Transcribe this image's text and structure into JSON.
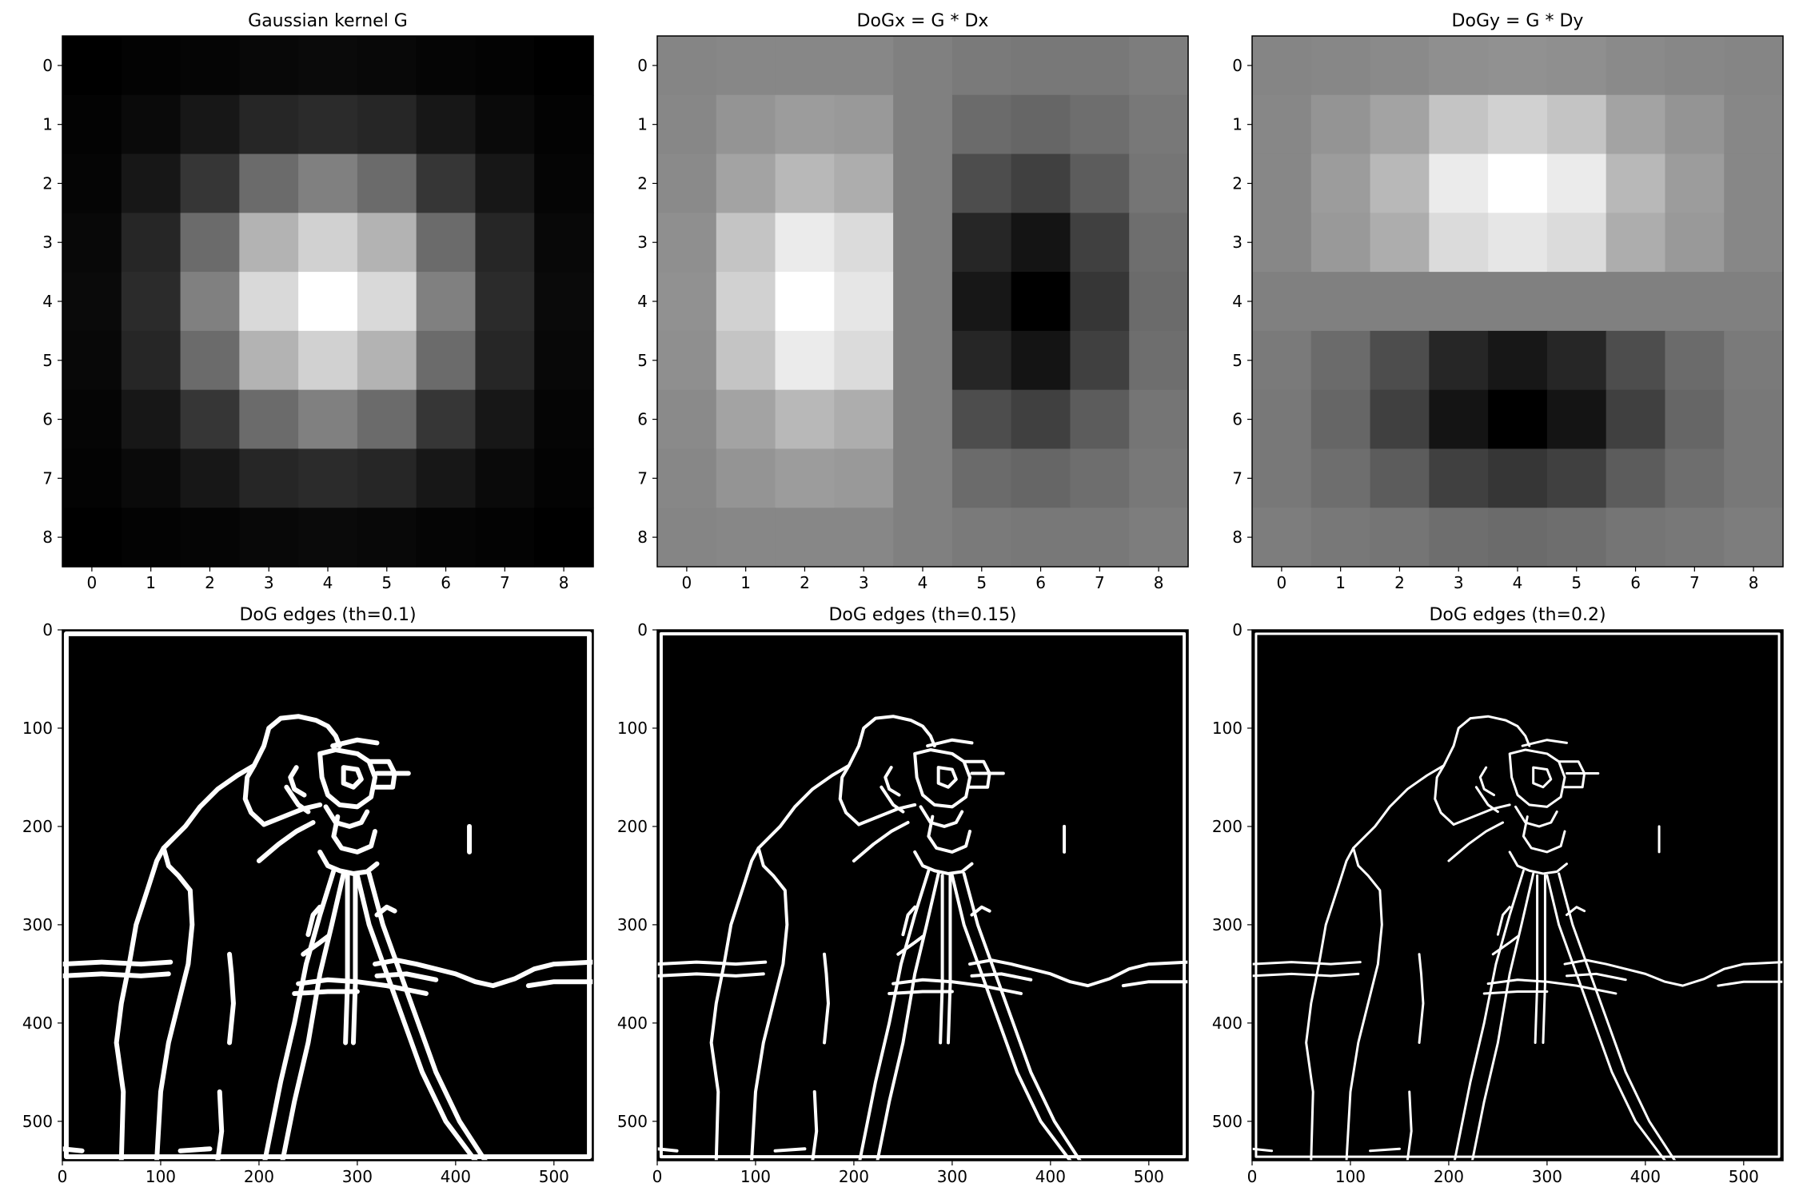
{
  "chart_data": [
    {
      "type": "heatmap",
      "title": "Gaussian kernel G",
      "x_ticks": [
        "0",
        "1",
        "2",
        "3",
        "4",
        "5",
        "6",
        "7",
        "8"
      ],
      "y_ticks": [
        "0",
        "1",
        "2",
        "3",
        "4",
        "5",
        "6",
        "7",
        "8"
      ],
      "colormap": "gray",
      "values": [
        [
          0.0,
          0.01,
          0.02,
          0.03,
          0.04,
          0.03,
          0.02,
          0.01,
          0.0
        ],
        [
          0.01,
          0.04,
          0.09,
          0.15,
          0.17,
          0.15,
          0.09,
          0.04,
          0.01
        ],
        [
          0.02,
          0.09,
          0.21,
          0.42,
          0.5,
          0.42,
          0.21,
          0.09,
          0.02
        ],
        [
          0.03,
          0.15,
          0.42,
          0.7,
          0.82,
          0.7,
          0.42,
          0.15,
          0.03
        ],
        [
          0.04,
          0.17,
          0.5,
          0.85,
          1.0,
          0.85,
          0.5,
          0.17,
          0.04
        ],
        [
          0.03,
          0.15,
          0.42,
          0.7,
          0.82,
          0.7,
          0.42,
          0.15,
          0.03
        ],
        [
          0.02,
          0.09,
          0.21,
          0.42,
          0.5,
          0.42,
          0.21,
          0.09,
          0.02
        ],
        [
          0.01,
          0.04,
          0.09,
          0.15,
          0.17,
          0.15,
          0.09,
          0.04,
          0.01
        ],
        [
          0.0,
          0.01,
          0.02,
          0.03,
          0.04,
          0.03,
          0.02,
          0.01,
          0.0
        ]
      ]
    },
    {
      "type": "heatmap",
      "title": "DoGx = G * Dx",
      "x_ticks": [
        "0",
        "1",
        "2",
        "3",
        "4",
        "5",
        "6",
        "7",
        "8"
      ],
      "y_ticks": [
        "0",
        "1",
        "2",
        "3",
        "4",
        "5",
        "6",
        "7",
        "8"
      ],
      "colormap": "gray",
      "values": [
        [
          0.52,
          0.53,
          0.53,
          0.53,
          0.5,
          0.48,
          0.47,
          0.47,
          0.49
        ],
        [
          0.53,
          0.58,
          0.61,
          0.6,
          0.5,
          0.42,
          0.4,
          0.43,
          0.47
        ],
        [
          0.54,
          0.64,
          0.72,
          0.68,
          0.5,
          0.3,
          0.25,
          0.36,
          0.46
        ],
        [
          0.56,
          0.77,
          0.92,
          0.86,
          0.5,
          0.15,
          0.08,
          0.25,
          0.43
        ],
        [
          0.57,
          0.82,
          1.0,
          0.9,
          0.5,
          0.09,
          0.0,
          0.21,
          0.42
        ],
        [
          0.56,
          0.77,
          0.92,
          0.86,
          0.5,
          0.15,
          0.08,
          0.25,
          0.43
        ],
        [
          0.54,
          0.64,
          0.72,
          0.68,
          0.5,
          0.3,
          0.25,
          0.36,
          0.46
        ],
        [
          0.53,
          0.58,
          0.61,
          0.6,
          0.5,
          0.42,
          0.4,
          0.43,
          0.47
        ],
        [
          0.52,
          0.53,
          0.53,
          0.53,
          0.5,
          0.48,
          0.47,
          0.47,
          0.49
        ]
      ]
    },
    {
      "type": "heatmap",
      "title": "DoGy = G * Dy",
      "x_ticks": [
        "0",
        "1",
        "2",
        "3",
        "4",
        "5",
        "6",
        "7",
        "8"
      ],
      "y_ticks": [
        "0",
        "1",
        "2",
        "3",
        "4",
        "5",
        "6",
        "7",
        "8"
      ],
      "colormap": "gray",
      "values": [
        [
          0.52,
          0.53,
          0.54,
          0.56,
          0.57,
          0.56,
          0.54,
          0.53,
          0.52
        ],
        [
          0.53,
          0.58,
          0.64,
          0.77,
          0.82,
          0.77,
          0.64,
          0.58,
          0.53
        ],
        [
          0.53,
          0.61,
          0.72,
          0.92,
          1.0,
          0.92,
          0.72,
          0.61,
          0.53
        ],
        [
          0.53,
          0.6,
          0.68,
          0.86,
          0.9,
          0.86,
          0.68,
          0.6,
          0.53
        ],
        [
          0.5,
          0.5,
          0.5,
          0.5,
          0.5,
          0.5,
          0.5,
          0.5,
          0.5
        ],
        [
          0.48,
          0.42,
          0.3,
          0.15,
          0.09,
          0.15,
          0.3,
          0.42,
          0.48
        ],
        [
          0.47,
          0.4,
          0.25,
          0.08,
          0.0,
          0.08,
          0.25,
          0.4,
          0.47
        ],
        [
          0.47,
          0.43,
          0.36,
          0.25,
          0.21,
          0.25,
          0.36,
          0.43,
          0.47
        ],
        [
          0.49,
          0.47,
          0.46,
          0.43,
          0.42,
          0.43,
          0.46,
          0.47,
          0.49
        ]
      ]
    },
    {
      "type": "heatmap",
      "title": "DoG edges (th=0.1)",
      "x_ticks": [
        "0",
        "100",
        "200",
        "300",
        "400",
        "500"
      ],
      "y_ticks": [
        "0",
        "100",
        "200",
        "300",
        "400",
        "500"
      ],
      "colormap": "binary edges on black",
      "stroke": 6
    },
    {
      "type": "heatmap",
      "title": "DoG edges (th=0.15)",
      "x_ticks": [
        "0",
        "100",
        "200",
        "300",
        "400",
        "500"
      ],
      "y_ticks": [
        "0",
        "100",
        "200",
        "300",
        "400",
        "500"
      ],
      "colormap": "binary edges on black",
      "stroke": 4
    },
    {
      "type": "heatmap",
      "title": "DoG edges (th=0.2)",
      "x_ticks": [
        "0",
        "100",
        "200",
        "300",
        "400",
        "500"
      ],
      "y_ticks": [
        "0",
        "100",
        "200",
        "300",
        "400",
        "500"
      ],
      "colormap": "binary edges on black",
      "stroke": 3
    }
  ]
}
